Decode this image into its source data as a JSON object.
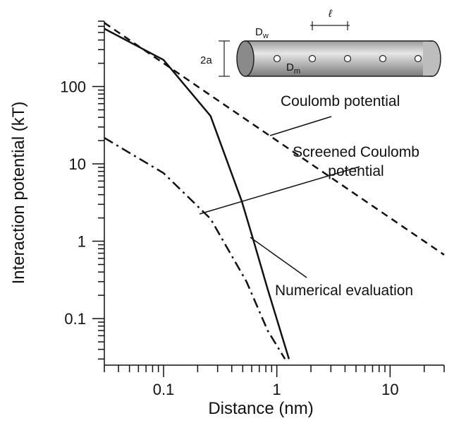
{
  "chart_data": {
    "type": "line",
    "log_x": true,
    "log_y": true,
    "x_label": "Distance (nm)",
    "y_label": "Interaction potential (kT)",
    "xlim": [
      0.03,
      30
    ],
    "ylim": [
      0.025,
      700
    ],
    "xticks": [
      0.1,
      1,
      10
    ],
    "yticks": [
      0.1,
      1,
      10,
      100
    ],
    "xminor_ticks": [
      0.03,
      0.04,
      0.05,
      0.06,
      0.07,
      0.08,
      0.09,
      0.2,
      0.3,
      0.4,
      0.5,
      0.6,
      0.7,
      0.8,
      0.9,
      2,
      3,
      4,
      5,
      6,
      7,
      8,
      9,
      20,
      30
    ],
    "yminor_ticks": [
      0.03,
      0.04,
      0.05,
      0.06,
      0.07,
      0.08,
      0.09,
      0.2,
      0.3,
      0.4,
      0.5,
      0.6,
      0.7,
      0.8,
      0.9,
      2,
      3,
      4,
      5,
      6,
      7,
      8,
      9,
      20,
      30,
      40,
      50,
      60,
      70,
      80,
      90,
      200,
      300,
      400,
      500,
      600,
      700
    ],
    "series": [
      {
        "color": "#111111",
        "dash": "dashed",
        "x": [
          0.03,
          30
        ],
        "values": [
          667,
          0.667
        ]
      },
      {
        "color": "#111111",
        "dash": "solid",
        "x": [
          0.03,
          0.1,
          0.26,
          0.49,
          0.62,
          0.83,
          1.28
        ],
        "values": [
          560,
          221,
          41.6,
          3.3,
          1.04,
          0.24,
          0.03
        ]
      },
      {
        "color": "#111111",
        "dash": "dashdot",
        "x": [
          0.03,
          0.1,
          0.26,
          0.54,
          0.83,
          1.18
        ],
        "values": [
          21.7,
          7.6,
          1.95,
          0.3,
          0.07,
          0.03
        ]
      }
    ],
    "annotations": [
      {
        "lines": [
          "Coulomb potential"
        ]
      },
      {
        "lines": [
          "Screened Coulomb",
          "potential"
        ]
      },
      {
        "lines": [
          "Numerical evaluation"
        ]
      }
    ],
    "inset": {
      "d_w": {
        "main": "D",
        "sub": "w"
      },
      "d_m": {
        "main": "D",
        "sub": "m"
      },
      "radius": "2a",
      "spacing": "ℓ"
    }
  }
}
